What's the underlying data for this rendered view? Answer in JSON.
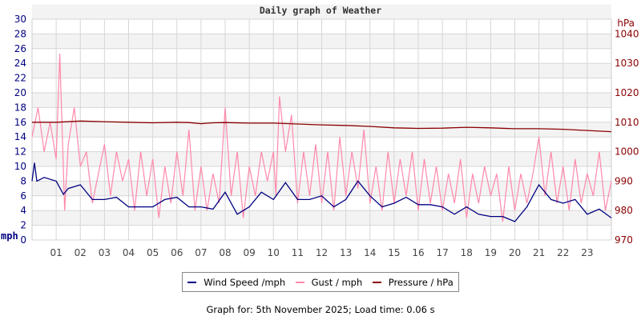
{
  "chart_data": {
    "type": "line",
    "title": "Daily graph of Weather",
    "ylabel_left": "mph",
    "ylabel_right": "hPa",
    "ylim_left": [
      0,
      30
    ],
    "ylim_right": [
      970,
      1045
    ],
    "left_ticks": [
      "0",
      "2",
      "4",
      "6",
      "8",
      "10",
      "12",
      "14",
      "16",
      "18",
      "20",
      "22",
      "24",
      "26",
      "28",
      "30"
    ],
    "right_ticks": [
      "970",
      "980",
      "990",
      "1000",
      "1010",
      "1020",
      "1030",
      "1040"
    ],
    "x_ticks": [
      "01",
      "02",
      "03",
      "04",
      "05",
      "06",
      "07",
      "08",
      "09",
      "10",
      "11",
      "12",
      "13",
      "14",
      "15",
      "16",
      "17",
      "18",
      "19",
      "20",
      "21",
      "22",
      "23"
    ],
    "xlim_hours": [
      0,
      24
    ],
    "grid": true,
    "series": [
      {
        "name": "Wind Speed /mph",
        "axis": "left",
        "color": "#000080",
        "x": [
          0,
          0.1,
          0.2,
          0.5,
          1,
          1.3,
          1.5,
          2,
          2.5,
          3,
          3.5,
          4,
          4.5,
          5,
          5.5,
          6,
          6.5,
          7,
          7.5,
          8,
          8.5,
          9,
          9.5,
          10,
          10.5,
          11,
          11.5,
          12,
          12.5,
          13,
          13.5,
          14,
          14.5,
          15,
          15.5,
          16,
          16.5,
          17,
          17.5,
          18,
          18.5,
          19,
          19.5,
          20,
          20.5,
          21,
          21.5,
          22,
          22.5,
          23,
          23.5,
          24
        ],
        "values": [
          8,
          10.5,
          8,
          8.5,
          8,
          6.2,
          7,
          7.5,
          5.5,
          5.5,
          5.8,
          4.5,
          4.5,
          4.5,
          5.5,
          5.8,
          4.5,
          4.5,
          4.2,
          6.5,
          3.5,
          4.5,
          6.5,
          5.5,
          7.8,
          5.5,
          5.5,
          6,
          4.5,
          5.5,
          8,
          6,
          4.5,
          5,
          5.8,
          4.8,
          4.8,
          4.5,
          3.5,
          4.5,
          3.5,
          3.2,
          3.2,
          2.5,
          4.5,
          7.5,
          5.5,
          5,
          5.5,
          3.5,
          4.2,
          3
        ]
      },
      {
        "name": "Gust / mph",
        "axis": "left",
        "color": "#ff88aa",
        "x": [
          0,
          0.25,
          0.5,
          0.75,
          1,
          1.15,
          1.35,
          1.5,
          1.75,
          2,
          2.25,
          2.5,
          2.75,
          3,
          3.25,
          3.5,
          3.75,
          4,
          4.25,
          4.5,
          4.75,
          5,
          5.25,
          5.5,
          5.75,
          6,
          6.25,
          6.5,
          6.75,
          7,
          7.25,
          7.5,
          7.75,
          8,
          8.25,
          8.5,
          8.75,
          9,
          9.25,
          9.5,
          9.75,
          10,
          10.1,
          10.25,
          10.5,
          10.75,
          11,
          11.25,
          11.5,
          11.75,
          12,
          12.25,
          12.5,
          12.75,
          13,
          13.25,
          13.5,
          13.75,
          14,
          14.25,
          14.5,
          14.75,
          15,
          15.25,
          15.5,
          15.75,
          16,
          16.25,
          16.5,
          16.75,
          17,
          17.25,
          17.5,
          17.75,
          18,
          18.25,
          18.5,
          18.75,
          19,
          19.25,
          19.5,
          19.75,
          20,
          20.25,
          20.5,
          20.75,
          21,
          21.25,
          21.5,
          21.75,
          22,
          22.25,
          22.5,
          22.75,
          23,
          23.25,
          23.5,
          23.75,
          24
        ],
        "values": [
          14,
          18,
          12,
          16,
          11,
          25.3,
          4,
          13,
          18,
          10,
          12,
          5,
          9,
          13,
          6,
          12,
          8,
          11,
          4,
          12,
          6,
          11,
          3,
          10,
          5,
          12,
          6,
          15,
          4,
          10,
          4,
          9,
          5,
          18,
          6,
          12,
          3,
          10,
          6,
          12,
          8,
          12,
          6,
          19.5,
          12,
          17,
          5,
          12,
          6,
          13,
          5,
          12,
          4,
          14,
          6,
          12,
          7,
          15,
          5,
          10,
          4,
          12,
          5,
          11,
          6,
          12,
          4,
          11,
          5,
          10,
          4,
          9,
          5,
          11,
          3,
          9,
          5,
          10,
          6,
          9,
          2.5,
          10,
          4,
          9,
          5,
          9,
          14,
          6,
          12,
          5,
          10,
          4,
          11,
          5,
          9,
          6,
          12,
          4,
          8
        ]
      },
      {
        "name": "Pressure / hPa",
        "axis": "right",
        "color": "#8b0000",
        "x": [
          0,
          1,
          2,
          3,
          4,
          5,
          6,
          6.5,
          7,
          7.5,
          8,
          9,
          10,
          11,
          12,
          13,
          14,
          15,
          16,
          17,
          18,
          19,
          20,
          21,
          22,
          23,
          24
        ],
        "values": [
          1010,
          1010,
          1010.4,
          1010.2,
          1010,
          1009.8,
          1010,
          1009.9,
          1009.5,
          1009.8,
          1009.9,
          1009.7,
          1009.7,
          1009.4,
          1009.1,
          1008.9,
          1008.6,
          1008.1,
          1007.9,
          1008,
          1008.3,
          1008.1,
          1007.8,
          1007.8,
          1007.6,
          1007.2,
          1006.8
        ]
      }
    ]
  },
  "legend": {
    "wind_label": "Wind Speed /mph",
    "gust_label": "Gust / mph",
    "pressure_label": "Pressure / hPa"
  },
  "footer": "Graph for: 5th November 2025; Load time: 0.06 s"
}
